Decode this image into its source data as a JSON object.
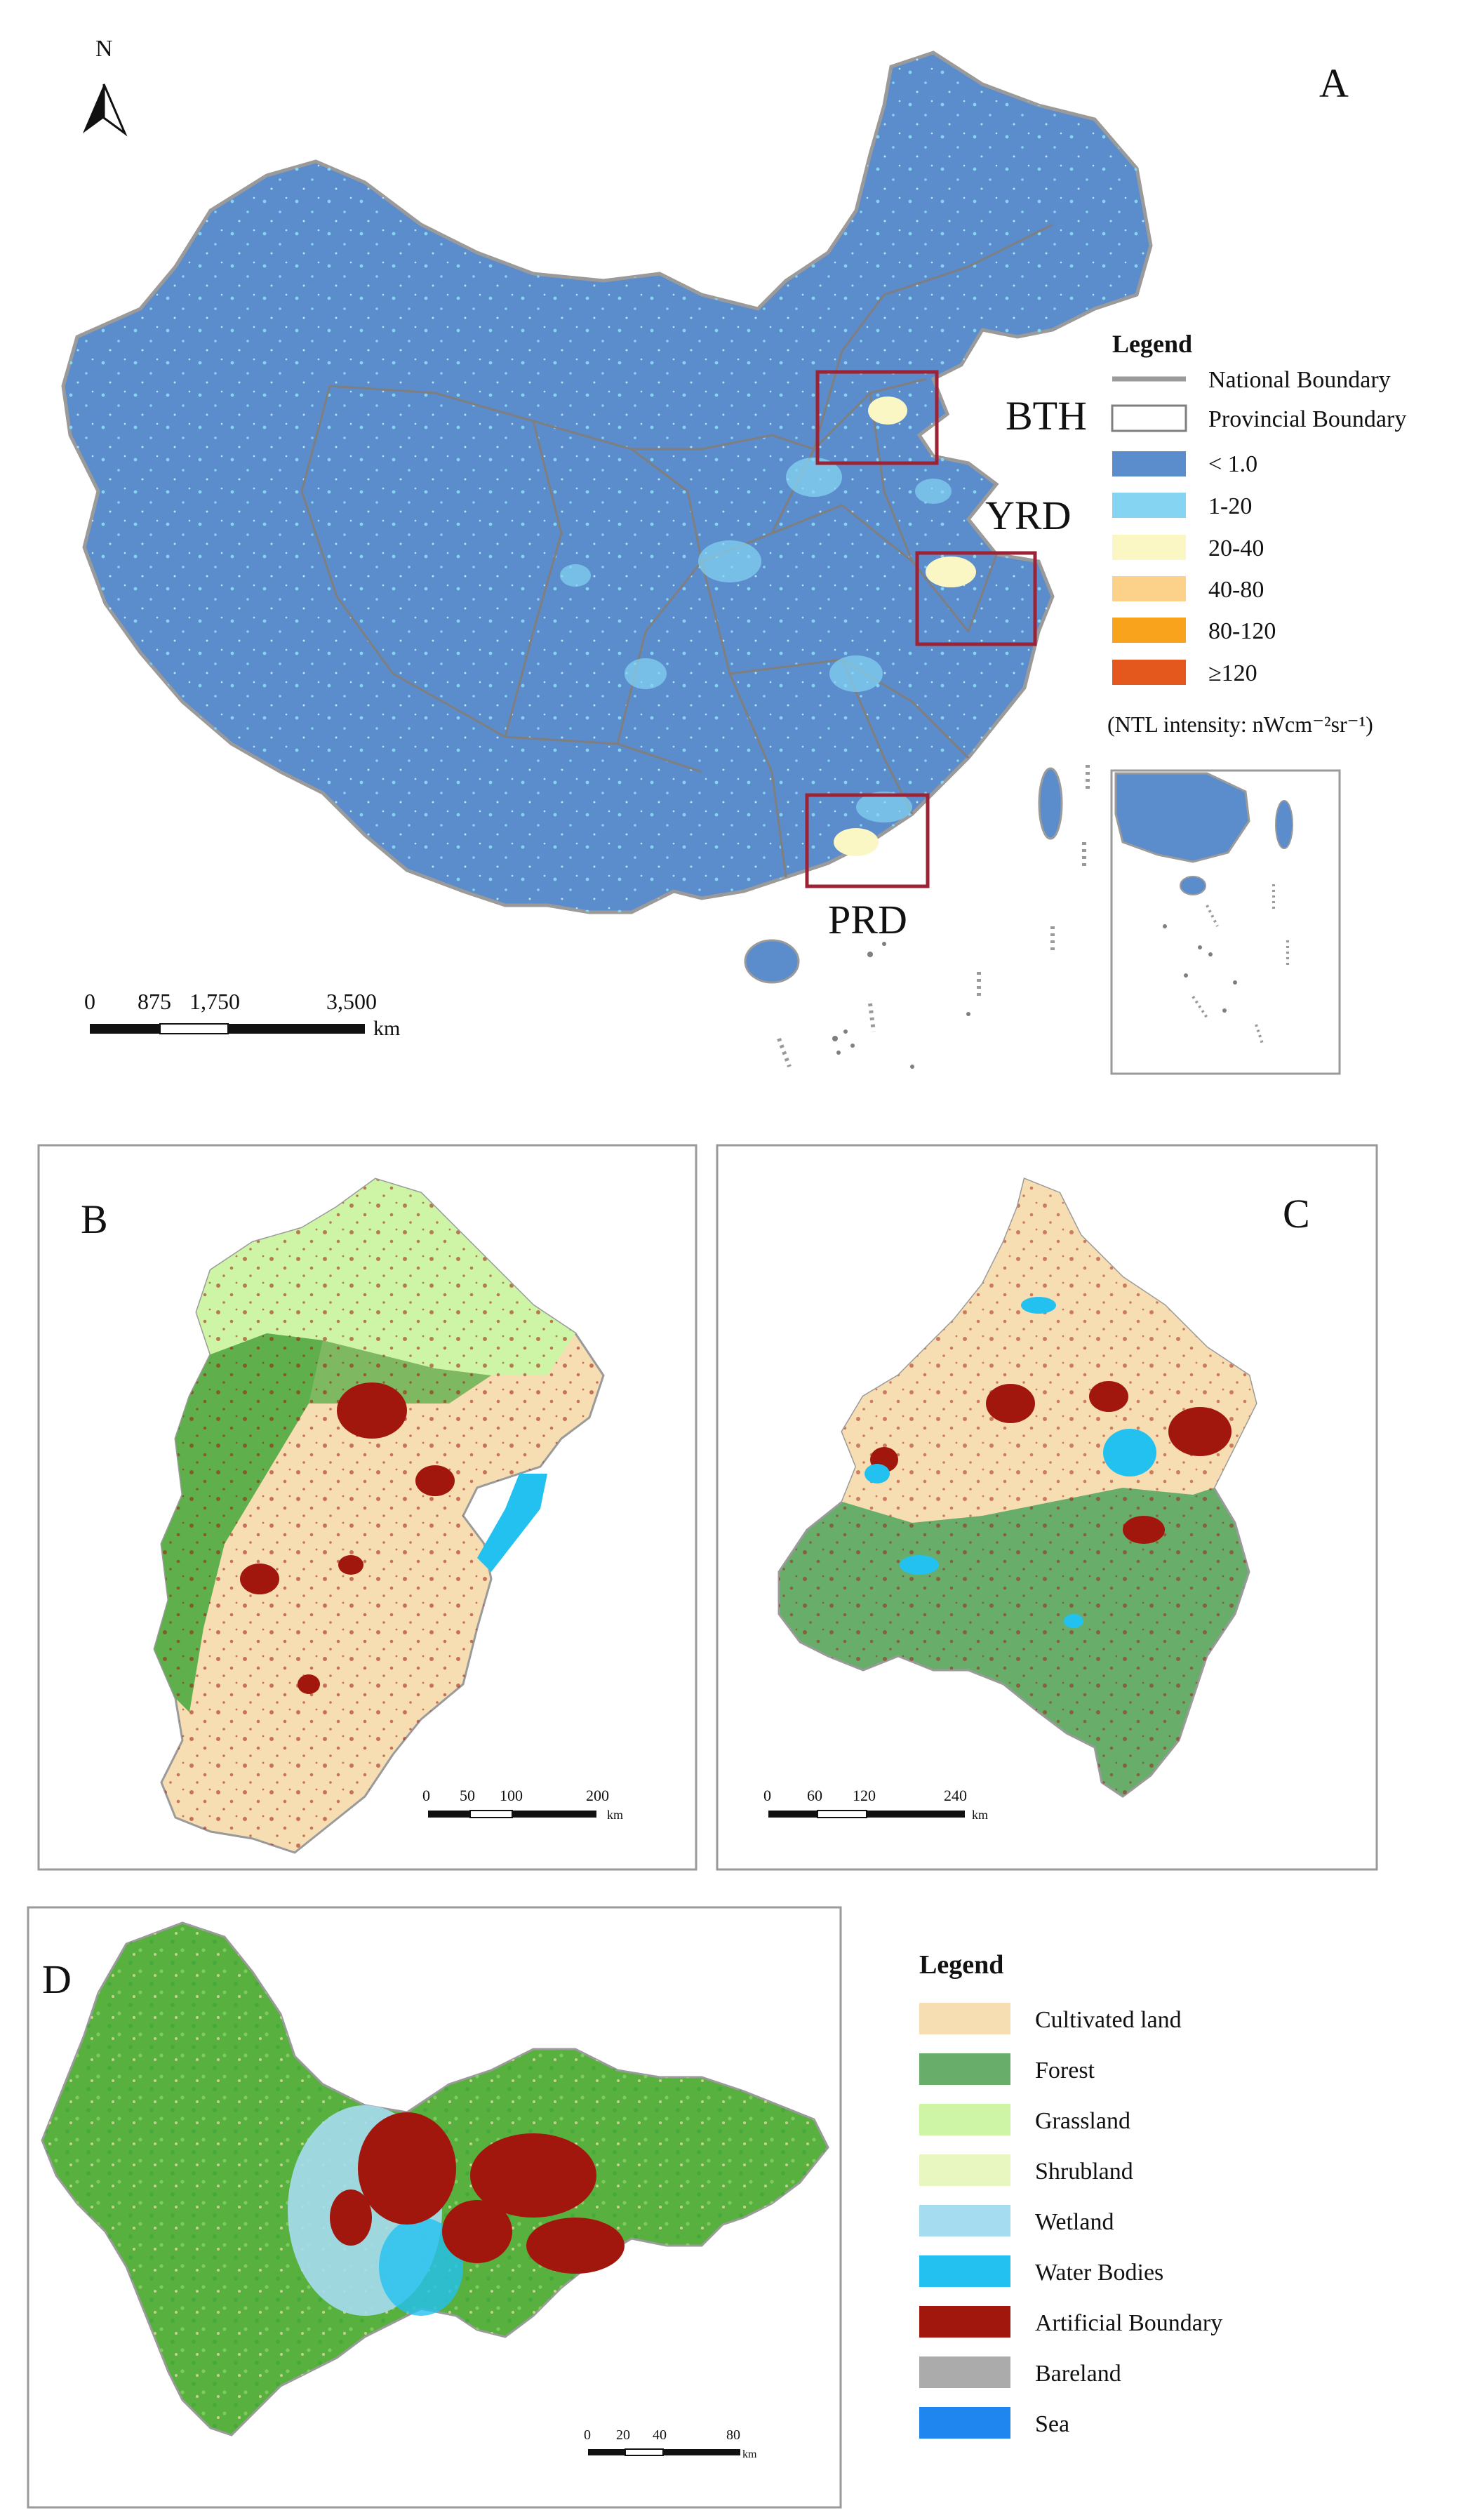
{
  "colors": {
    "ntl_lt1": "#5b8ccc",
    "ntl_1_20": "#85d4f2",
    "ntl_20_40": "#fbf7c4",
    "ntl_40_80": "#fcd28a",
    "ntl_80_120": "#f8a31b",
    "ntl_ge120": "#e4571d",
    "national_boundary": "#9a9a9a",
    "provincial_boundary": "#7f7f7f",
    "region_box": "#9b2335",
    "cultivated": "#f7ddb2",
    "forest": "#69ad6b",
    "grassland": "#cef5a6",
    "shrubland": "#e8f7c0",
    "wetland": "#a6dcf0",
    "water": "#23c1f0",
    "artificial": "#a1170e",
    "bareland": "#ababab",
    "sea": "#1f86f0"
  },
  "panelA": {
    "label": "A",
    "north": "N",
    "regions": [
      "BTH",
      "YRD",
      "PRD"
    ],
    "scale": {
      "ticks": [
        "0",
        "875",
        "1,750",
        "3,500"
      ],
      "unit": "km"
    },
    "legend": {
      "title": "Legend",
      "items": [
        {
          "label": "National Boundary",
          "type": "line",
          "color_key": "national_boundary"
        },
        {
          "label": "Provincial Boundary",
          "type": "outline",
          "color_key": "provincial_boundary"
        },
        {
          "label": "< 1.0",
          "type": "fill",
          "color_key": "ntl_lt1"
        },
        {
          "label": "1-20",
          "type": "fill",
          "color_key": "ntl_1_20"
        },
        {
          "label": "20-40",
          "type": "fill",
          "color_key": "ntl_20_40"
        },
        {
          "label": "40-80",
          "type": "fill",
          "color_key": "ntl_40_80"
        },
        {
          "label": "80-120",
          "type": "fill",
          "color_key": "ntl_80_120"
        },
        {
          "label": "≥120",
          "type": "fill",
          "color_key": "ntl_ge120"
        }
      ],
      "unit_note": "(NTL intensity: nWcm⁻²sr⁻¹)"
    }
  },
  "panelB": {
    "label": "B",
    "scale": {
      "ticks": [
        "0",
        "50",
        "100",
        "200"
      ],
      "unit": "km"
    }
  },
  "panelC": {
    "label": "C",
    "scale": {
      "ticks": [
        "0",
        "60",
        "120",
        "240"
      ],
      "unit": "km"
    }
  },
  "panelD": {
    "label": "D",
    "scale": {
      "ticks": [
        "0",
        "20",
        "40",
        "80"
      ],
      "unit": "km"
    },
    "legend": {
      "title": "Legend",
      "items": [
        {
          "label": "Cultivated land",
          "color_key": "cultivated"
        },
        {
          "label": "Forest",
          "color_key": "forest"
        },
        {
          "label": "Grassland",
          "color_key": "grassland"
        },
        {
          "label": "Shrubland",
          "color_key": "shrubland"
        },
        {
          "label": "Wetland",
          "color_key": "wetland"
        },
        {
          "label": "Water Bodies",
          "color_key": "water"
        },
        {
          "label": "Artificial Boundary",
          "color_key": "artificial"
        },
        {
          "label": "Bareland",
          "color_key": "bareland"
        },
        {
          "label": "Sea",
          "color_key": "sea"
        }
      ]
    }
  }
}
